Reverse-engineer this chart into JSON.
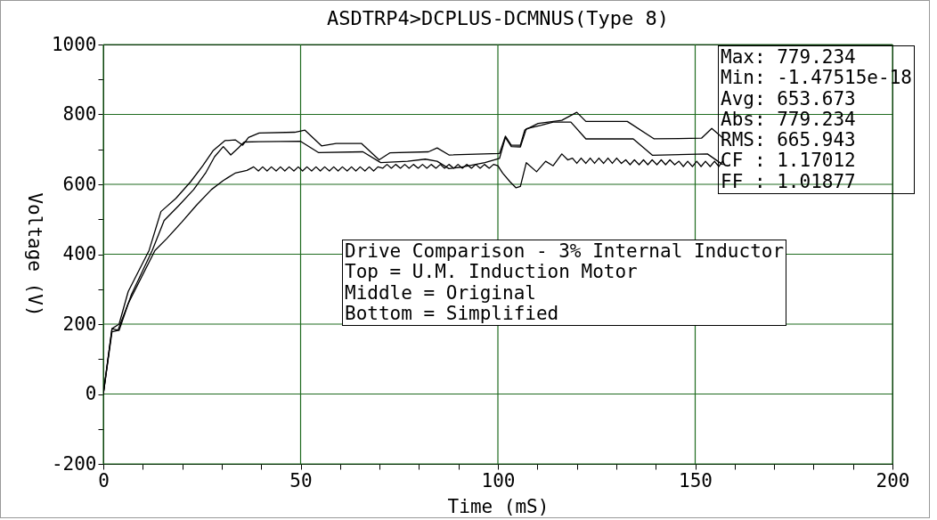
{
  "chart_data": {
    "type": "line",
    "title": "ASDTRP4>DCPLUS-DCMNUS(Type 8)",
    "xlabel": "Time (mS)",
    "ylabel": "Voltage (V)",
    "xlim": [
      0,
      200
    ],
    "ylim": [
      -200,
      1000
    ],
    "xticks": [
      0,
      {
        "value": 10,
        "label": null
      },
      {
        "value": 20,
        "label": null
      },
      {
        "value": 30,
        "label": null
      },
      {
        "value": 40,
        "label": null
      },
      50,
      {
        "value": 60,
        "label": null
      },
      {
        "value": 70,
        "label": null
      },
      {
        "value": 80,
        "label": null
      },
      {
        "value": 90,
        "label": null
      },
      100,
      {
        "value": 110,
        "label": null
      },
      {
        "value": 120,
        "label": null
      },
      {
        "value": 130,
        "label": null
      },
      {
        "value": 140,
        "label": null
      },
      150,
      {
        "value": 160,
        "label": null
      },
      {
        "value": 170,
        "label": null
      },
      {
        "value": 180,
        "label": null
      },
      {
        "value": 190,
        "label": null
      },
      200
    ],
    "yticks": [
      -200,
      {
        "value": -100,
        "label": null
      },
      0,
      {
        "value": 100,
        "label": null
      },
      200,
      {
        "value": 300,
        "label": null
      },
      400,
      {
        "value": 500,
        "label": null
      },
      600,
      {
        "value": 700,
        "label": null
      },
      800,
      {
        "value": 900,
        "label": null
      },
      1000
    ],
    "grid": true,
    "legend": false,
    "marker": "none",
    "line_style": "solid",
    "annotations": [
      "Max: 779.234\nMin: -1.47515e-18\nAvg: 653.673\nAbs: 779.234\nRMS: 665.943\nCF : 1.17012\nFF : 1.01877",
      "Drive Comparison - 3% Internal Inductor\nTop = U.M. Induction Motor\nMiddle = Original\nBottom = Simplified"
    ],
    "series": [
      {
        "color": "#000000",
        "x": [
          0,
          2.2,
          4,
          6.3,
          11.6,
          14.6,
          18.4,
          22.1,
          25.2,
          27.8,
          30.8,
          33.5,
          35.3,
          36.8,
          39.5,
          48.5,
          51.1,
          55.3,
          59,
          65.4,
          69.9,
          72.6,
          82.4,
          84.6,
          87.6,
          100.4,
          101.9,
          103.4,
          105.7,
          106.8,
          110.2,
          116.2,
          120,
          122.3,
          132.8,
          139.6,
          151.6,
          154.2,
          156.9
        ],
        "values": [
          0,
          187,
          200,
          293,
          411,
          522,
          560,
          607,
          653,
          696,
          725,
          727,
          712,
          734,
          747,
          749,
          755,
          710,
          717,
          717,
          670,
          690,
          693,
          704,
          684,
          688,
          738,
          712,
          712,
          755,
          774,
          783,
          806,
          780,
          780,
          730,
          732,
          760,
          734
        ]
      },
      {
        "color": "#000000",
        "x": [
          0,
          2.2,
          4,
          7.1,
          12.4,
          15.4,
          19.1,
          22.9,
          25.9,
          28.2,
          30.4,
          32.3,
          34.2,
          35.7,
          39.5,
          50,
          54.5,
          65.8,
          70.3,
          77.1,
          81.6,
          84.6,
          87.6,
          90.6,
          96.7,
          100.4,
          101.9,
          103.4,
          105.7,
          107.2,
          111,
          114,
          118.5,
          122.3,
          134.3,
          139.2,
          153.1,
          156.9
        ],
        "values": [
          0,
          187,
          182,
          284,
          411,
          496,
          539,
          585,
          632,
          679,
          708,
          684,
          704,
          721,
          722,
          723,
          691,
          693,
          662,
          666,
          672,
          666,
          645,
          649,
          662,
          674,
          734,
          708,
          707,
          759,
          769,
          778,
          778,
          730,
          730,
          683,
          687,
          657
        ]
      },
      {
        "color": "#000000",
        "x": [
          0,
          2.2,
          3.7,
          6.3,
          13.1,
          16.1,
          19.9,
          23.6,
          27.4,
          30.4,
          33.4,
          36.4,
          38.1,
          39.3,
          40.4,
          41.5,
          42.6,
          43.8,
          44.9,
          46.0,
          47.1,
          48.3,
          49.4,
          50.5,
          51.6,
          52.8,
          53.9,
          55.0,
          56.1,
          57.3,
          58.4,
          59.5,
          60.6,
          61.8,
          62.9,
          64.0,
          65.1,
          66.3,
          67.4,
          68.5,
          69.6,
          70.8,
          71.9,
          73.0,
          74.1,
          75.3,
          76.4,
          77.5,
          78.6,
          79.8,
          80.9,
          82.0,
          83.1,
          84.3,
          85.4,
          86.5,
          87.6,
          88.8,
          89.9,
          91.0,
          92.1,
          93.3,
          94.4,
          95.5,
          96.6,
          97.8,
          98.9,
          100,
          101.2,
          103.1,
          104.6,
          105.7,
          107.2,
          109.8,
          112.1,
          114,
          116.2,
          117.7,
          118.9,
          120.0,
          121.1,
          122.3,
          123.4,
          124.5,
          125.6,
          126.8,
          127.9,
          129.0,
          130.1,
          131.3,
          132.4,
          133.5,
          134.6,
          135.8,
          136.9,
          138.0,
          139.1,
          140.3,
          141.4,
          142.5,
          143.6,
          144.8,
          145.9,
          147.0,
          148.1,
          149.3,
          150.4,
          151.5,
          152.6,
          153.8,
          154.9,
          156.0,
          156.9
        ],
        "values": [
          0,
          178,
          182,
          259,
          411,
          445,
          492,
          540,
          585,
          611,
          632,
          640,
          650,
          638,
          650,
          638,
          650,
          638,
          650,
          638,
          650,
          638,
          650,
          638,
          650,
          638,
          650,
          638,
          650,
          638,
          650,
          638,
          650,
          638,
          650,
          638,
          650,
          638,
          650,
          638,
          650,
          646,
          657,
          646,
          657,
          646,
          657,
          646,
          657,
          646,
          657,
          646,
          657,
          646,
          657,
          646,
          657,
          646,
          657,
          646,
          657,
          646,
          657,
          646,
          657,
          646,
          657,
          653,
          632,
          607,
          590,
          594,
          662,
          636,
          666,
          653,
          687,
          670,
          675,
          660,
          675,
          660,
          675,
          660,
          675,
          660,
          675,
          660,
          675,
          660,
          670,
          656,
          670,
          656,
          670,
          656,
          670,
          656,
          670,
          656,
          670,
          656,
          666,
          651,
          666,
          651,
          666,
          651,
          666,
          651,
          666,
          651,
          666
        ]
      }
    ]
  }
}
